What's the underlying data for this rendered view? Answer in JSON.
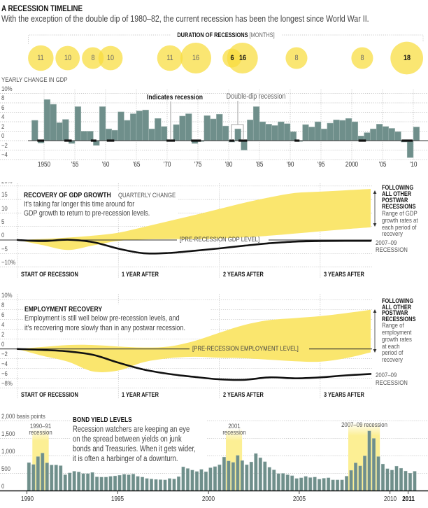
{
  "header": {
    "title": "A RECESSION TIMELINE",
    "subtitle": "With the exception of the double dip of 1980–82, the current recession has been the longest since World War II."
  },
  "colors": {
    "highlight_yellow": "#fae66e",
    "bubble_yellow": "#f8dc3c",
    "bar": "#6f8f8b",
    "bar_edge": "#a5b9b6",
    "line": "#111111"
  },
  "chart_data": [
    {
      "type": "scatter",
      "title": "DURATION OF RECESSIONS",
      "unit_label": "[MONTHS]",
      "points": [
        {
          "year": 1949.47,
          "months": 11,
          "label": "11",
          "bold": false
        },
        {
          "year": 1953.83,
          "months": 10,
          "label": "10",
          "bold": false
        },
        {
          "year": 1957.92,
          "months": 8,
          "label": "8",
          "bold": false
        },
        {
          "year": 1960.8,
          "months": 10,
          "label": "10",
          "bold": false
        },
        {
          "year": 1970.45,
          "months": 11,
          "label": "11",
          "bold": false
        },
        {
          "year": 1974.66,
          "months": 16,
          "label": "16",
          "bold": false
        },
        {
          "year": 1980.53,
          "months": 6,
          "label": "6",
          "bold": true
        },
        {
          "year": 1982.24,
          "months": 16,
          "label": "16",
          "bold": true
        },
        {
          "year": 1991.02,
          "months": 8,
          "label": "8",
          "bold": false
        },
        {
          "year": 2001.7,
          "months": 8,
          "label": "8",
          "bold": false
        },
        {
          "year": 2008.94,
          "months": 18,
          "label": "18",
          "bold": true
        }
      ]
    },
    {
      "type": "bar",
      "title": "YEARLY CHANGE IN GDP",
      "xlabel": "",
      "ylabel": "",
      "x": [
        1948,
        1949,
        1950,
        1951,
        1952,
        1953,
        1954,
        1955,
        1956,
        1957,
        1958,
        1959,
        1960,
        1961,
        1962,
        1963,
        1964,
        1965,
        1966,
        1967,
        1968,
        1969,
        1970,
        1971,
        1972,
        1973,
        1974,
        1975,
        1976,
        1977,
        1978,
        1979,
        1980,
        1981,
        1982,
        1983,
        1984,
        1985,
        1986,
        1987,
        1988,
        1989,
        1990,
        1991,
        1992,
        1993,
        1994,
        1995,
        1996,
        1997,
        1998,
        1999,
        2000,
        2001,
        2002,
        2003,
        2004,
        2005,
        2006,
        2007,
        2008,
        2009,
        2010
      ],
      "values": [
        4.3,
        -0.5,
        8.7,
        7.7,
        3.8,
        4.5,
        -0.6,
        7.2,
        2.0,
        2.0,
        -1.0,
        7.2,
        2.5,
        2.2,
        6.1,
        4.3,
        5.7,
        6.3,
        6.5,
        2.5,
        4.7,
        3.0,
        0.2,
        3.4,
        5.2,
        5.7,
        -0.6,
        -0.2,
        5.3,
        4.6,
        5.6,
        3.1,
        -0.3,
        2.5,
        -2.0,
        4.4,
        7.2,
        4.0,
        3.5,
        3.2,
        4.0,
        3.6,
        1.9,
        -0.2,
        3.4,
        2.9,
        4.0,
        2.5,
        3.7,
        4.4,
        4.3,
        4.7,
        4.0,
        1.0,
        1.7,
        2.5,
        3.5,
        3.0,
        2.6,
        1.9,
        -0.3,
        -3.6,
        2.9
      ],
      "ylim": [
        -4,
        10
      ],
      "yticks": [
        10,
        8,
        6,
        4,
        2,
        0,
        -2,
        -4
      ],
      "ytick_labels": [
        "10%",
        "8",
        "6",
        "4",
        "2",
        "0",
        "−2",
        "−4"
      ],
      "xticks": [
        1950,
        1955,
        1960,
        1965,
        1970,
        1975,
        1980,
        1985,
        1990,
        1995,
        2000,
        2005,
        2010
      ],
      "xtick_labels": [
        "1950",
        "’55",
        "’60",
        "’65",
        "’70",
        "’75",
        "’80",
        "’85",
        "’90",
        "’95",
        "2000",
        "’05",
        "’10"
      ],
      "recessions": [
        [
          1948.9,
          1950.0
        ],
        [
          1953.3,
          1954.5
        ],
        [
          1957.6,
          1958.5
        ],
        [
          1960.2,
          1961.4
        ],
        [
          1969.9,
          1971.25
        ],
        [
          1973.9,
          1975.5
        ],
        [
          1980.1,
          1980.9
        ],
        [
          1981.6,
          1983.0
        ],
        [
          1990.7,
          1991.5
        ],
        [
          2001.1,
          2002.3
        ],
        [
          2008.1,
          2009.9
        ]
      ],
      "annotations": {
        "recession_marker": "Indicates recession",
        "double_dip": "Double-dip recession"
      },
      "grid": true
    },
    {
      "type": "area",
      "title": "RECOVERY OF GDP GROWTH",
      "subtitle": "QUARTERLY CHANGE",
      "description": [
        "It’s taking far longer this time around for",
        "GDP growth to return to pre-recession levels."
      ],
      "x": [
        0,
        1,
        2,
        3,
        4,
        5,
        6,
        7,
        8,
        9,
        10,
        11,
        12,
        13,
        14
      ],
      "x_unit": "quarters",
      "ylim": [
        -12,
        20
      ],
      "yticks": [
        20,
        15,
        10,
        5,
        0,
        -5,
        -10
      ],
      "ytick_labels": [
        "20%",
        "15",
        "10",
        "5",
        "0",
        "−5",
        "−10%"
      ],
      "xticks": [
        0,
        4,
        8,
        12
      ],
      "xtick_labels": [
        "START OF RECESSION",
        "1 YEAR AFTER",
        "2 YEARS AFTER",
        "3 YEARS AFTER"
      ],
      "baseline_label": "[PRE-RECESSION GDP LEVEL]",
      "series": [
        {
          "name": "FOLLOWING ALL OTHER POSTWAR RECESSIONS",
          "type": "band",
          "upper": [
            0,
            0.4,
            0.9,
            1.6,
            2.7,
            4.8,
            7.0,
            9.2,
            11.5,
            13.8,
            15.8,
            17.4,
            17.9,
            18.4,
            18.9
          ],
          "lower": [
            0,
            -1.9,
            -3.7,
            -2.0,
            -0.3,
            0.2,
            0.3,
            0.4,
            0.6,
            1.0,
            1.6,
            2.4,
            3.2,
            4.0,
            4.7
          ]
        },
        {
          "name": "2007–09 RECESSION",
          "type": "line",
          "values": [
            0,
            -0.4,
            0.1,
            -0.8,
            -3.2,
            -4.9,
            -4.8,
            -4.0,
            -3.1,
            -2.1,
            -1.2,
            -0.6,
            -0.4,
            -0.3,
            -0.3
          ]
        }
      ],
      "legend": {
        "band_title": [
          "FOLLOWING",
          "ALL OTHER",
          "POSTWAR",
          "RECESSIONS"
        ],
        "band_text": [
          "Range of GDP",
          "growth rates at",
          "each period of",
          "recovery"
        ],
        "line_text": [
          "2007–09",
          "RECESSION"
        ]
      }
    },
    {
      "type": "area",
      "title": "EMPLOYMENT RECOVERY",
      "description": [
        "Employment is still well below pre-recession levels, and",
        "it’s recovering more slowly than in any postwar recession."
      ],
      "x": [
        0,
        1,
        2,
        3,
        4,
        5,
        6,
        7,
        8,
        9,
        10,
        11,
        12,
        13,
        14
      ],
      "x_unit": "quarters",
      "ylim": [
        -9,
        10
      ],
      "yticks": [
        10,
        8,
        6,
        4,
        2,
        0,
        -2,
        -4,
        -6,
        -8
      ],
      "ytick_labels": [
        "10%",
        "8",
        "6",
        "4",
        "2",
        "0",
        "−2",
        "−4",
        "−6",
        "−8%"
      ],
      "xticks": [
        0,
        4,
        8,
        12
      ],
      "xtick_labels": [
        "START OF RECESSION",
        "1 YEAR AFTER",
        "2 YEARS AFTER",
        "3 YEARS AFTER"
      ],
      "baseline_label": "[PRE-RECESSION EMPLOYMENT LEVEL]",
      "series": [
        {
          "name": "FOLLOWING ALL OTHER POSTWAR RECESSIONS",
          "type": "band",
          "upper": [
            0,
            0.4,
            0.8,
            0.8,
            0.5,
            0.3,
            0.5,
            1.6,
            3.3,
            4.9,
            5.9,
            6.3,
            6.7,
            7.3,
            8.0
          ],
          "lower": [
            0,
            -1.4,
            -2.6,
            -4.6,
            -4.4,
            -2.7,
            -1.9,
            -1.6,
            -1.8,
            -1.9,
            -2.2,
            -2.5,
            -2.6,
            -1.9,
            -0.7
          ]
        },
        {
          "name": "2007–09 RECESSION",
          "type": "line",
          "values": [
            0,
            -0.2,
            -0.5,
            -1.2,
            -2.8,
            -4.2,
            -5.1,
            -5.7,
            -6.2,
            -6.3,
            -5.8,
            -6.0,
            -5.8,
            -5.4,
            -5.1
          ]
        }
      ],
      "legend": {
        "band_title": [
          "FOLLOWING",
          "ALL OTHER",
          "POSTWAR",
          "RECESSIONS"
        ],
        "band_text": [
          "Range of",
          "employment",
          "growth rates",
          "at each",
          "period of",
          "recovery"
        ],
        "line_text": [
          "2007–09",
          "RECESSION"
        ]
      }
    },
    {
      "type": "bar",
      "title": "BOND YIELD LEVELS",
      "description": [
        "Recession watchers are keeping an eye",
        "on the spread between yields on junk",
        "bonds and Treasuries. When it gets wider,",
        "it is often a harbinger of a downturn."
      ],
      "ylabel": "basis points",
      "ylim": [
        0,
        2000
      ],
      "yticks": [
        2000,
        1500,
        1000,
        500,
        0
      ],
      "ytick_labels": [
        "2,000 basis points",
        "1,500",
        "1,000",
        "500",
        "0"
      ],
      "x_start": 1990.0,
      "x_step_years": 0.25,
      "values": [
        807,
        753,
        980,
        1080,
        800,
        740,
        740,
        720,
        460,
        513,
        560,
        540,
        493,
        493,
        527,
        400,
        393,
        393,
        413,
        427,
        447,
        473,
        460,
        480,
        413,
        393,
        353,
        340,
        327,
        320,
        313,
        353,
        340,
        407,
        687,
        640,
        593,
        553,
        613,
        547,
        660,
        693,
        747,
        967,
        853,
        813,
        1013,
        867,
        747,
        827,
        1067,
        947,
        833,
        673,
        600,
        493,
        500,
        460,
        433,
        353,
        373,
        413,
        380,
        393,
        333,
        360,
        373,
        313,
        313,
        313,
        420,
        587,
        800,
        713,
        1000,
        1713,
        1500,
        980,
        767,
        633,
        593,
        707,
        647,
        567,
        507,
        560
      ],
      "xticks": [
        1990,
        1995,
        2000,
        2005,
        2010,
        2011
      ],
      "xtick_labels": [
        "1990",
        "1995",
        "2000",
        "2005",
        "2010",
        "2011"
      ],
      "highlights": [
        {
          "label": [
            "1990–91",
            "recession"
          ],
          "start": 1990.3,
          "end": 1991.2
        },
        {
          "label": [
            "2001",
            "recession"
          ],
          "start": 2000.96,
          "end": 2001.85
        },
        {
          "label": [
            "2007–09 recession"
          ],
          "start": 2007.7,
          "end": 2009.44
        }
      ]
    }
  ]
}
